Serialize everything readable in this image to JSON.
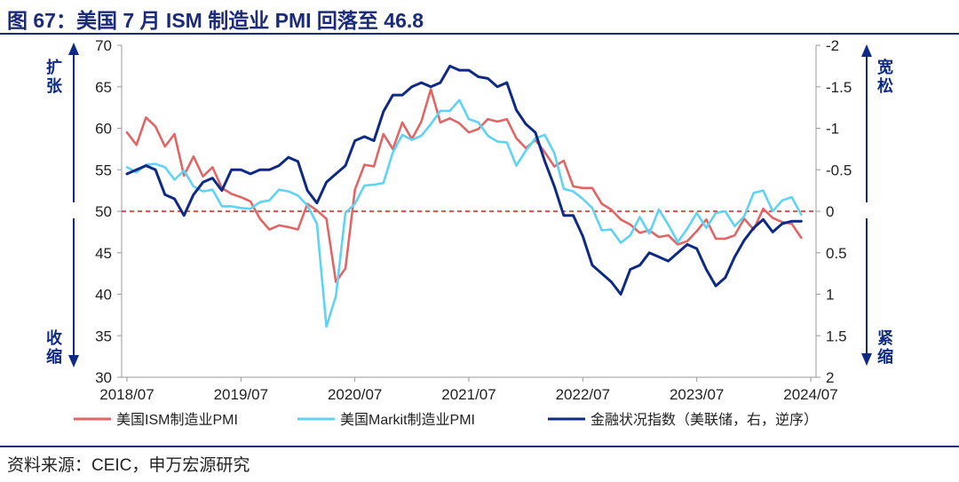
{
  "title": "图 67：美国 7 月 ISM 制造业 PMI 回落至 46.8",
  "source": "资料来源：CEIC，申万宏源研究",
  "chart_data": {
    "type": "line",
    "x_tick_labels": [
      "2018/07",
      "2019/07",
      "2020/07",
      "2021/07",
      "2022/07",
      "2023/07",
      "2024/07"
    ],
    "left_axis": {
      "ylim": [
        30,
        70
      ],
      "ticks": [
        "30",
        "35",
        "40",
        "45",
        "50",
        "55",
        "60",
        "65",
        "70"
      ],
      "upper_label": [
        "扩",
        "张"
      ],
      "lower_label": [
        "收",
        "缩"
      ]
    },
    "right_axis": {
      "ylim": [
        2,
        -2
      ],
      "inverted": true,
      "ticks": [
        "-2",
        "-1.5",
        "-1",
        "-0.5",
        "0",
        "0.5",
        "1",
        "1.5",
        "2"
      ],
      "upper_label": [
        "宽",
        "松"
      ],
      "lower_label": [
        "紧",
        "缩"
      ]
    },
    "reference_line": {
      "value": 50,
      "axis": "left"
    },
    "series": [
      {
        "name": "美国ISM制造业PMI",
        "axis": "left",
        "color": "#e06666",
        "values": [
          59.5,
          58.0,
          61.3,
          60.2,
          57.8,
          59.3,
          54.3,
          56.6,
          54.2,
          55.3,
          52.8,
          52.1,
          51.7,
          51.2,
          49.1,
          47.8,
          48.3,
          48.1,
          47.8,
          50.9,
          50.1,
          49.1,
          41.5,
          43.1,
          52.6,
          55.6,
          55.4,
          59.3,
          57.5,
          60.7,
          58.7,
          60.8,
          64.7,
          60.7,
          61.2,
          60.6,
          59.5,
          59.9,
          61.1,
          60.8,
          61.1,
          58.8,
          57.6,
          58.6,
          57.1,
          55.4,
          56.1,
          53.0,
          52.8,
          52.8,
          50.9,
          50.2,
          49.0,
          48.4,
          47.4,
          47.7,
          46.9,
          47.1,
          46.0,
          46.4,
          47.6,
          49.0,
          46.7,
          46.7,
          47.1,
          49.1,
          47.8,
          50.3,
          49.2,
          48.7,
          48.5,
          46.8
        ]
      },
      {
        "name": "美国Markit制造业PMI",
        "axis": "left",
        "color": "#5fd3f3",
        "values": [
          55.3,
          54.7,
          55.6,
          55.7,
          55.3,
          53.8,
          54.9,
          53.0,
          52.4,
          52.6,
          50.6,
          50.6,
          50.4,
          50.3,
          51.1,
          51.3,
          52.6,
          52.4,
          51.9,
          50.7,
          48.5,
          36.1,
          39.8,
          49.8,
          50.9,
          53.1,
          53.2,
          53.4,
          57.1,
          59.2,
          58.6,
          59.1,
          60.5,
          62.1,
          62.1,
          63.4,
          61.1,
          60.7,
          59.1,
          58.4,
          58.3,
          55.5,
          57.3,
          58.8,
          59.2,
          57.0,
          52.7,
          52.4,
          51.5,
          50.4,
          47.7,
          47.8,
          46.2,
          47.1,
          49.3,
          47.3,
          50.2,
          48.4,
          46.3,
          47.9,
          49.8,
          48.0,
          49.8,
          50.0,
          48.2,
          49.4,
          52.2,
          52.5,
          50.0,
          51.3,
          51.7,
          49.6
        ]
      },
      {
        "name": "金融状况指数（美联储，右，逆序）",
        "axis": "right",
        "color": "#0e2a85",
        "values": [
          -0.45,
          -0.5,
          -0.55,
          -0.5,
          -0.2,
          -0.15,
          0.05,
          -0.2,
          -0.35,
          -0.4,
          -0.25,
          -0.5,
          -0.5,
          -0.45,
          -0.5,
          -0.5,
          -0.55,
          -0.65,
          -0.6,
          -0.25,
          -0.1,
          -0.35,
          -0.45,
          -0.55,
          -0.85,
          -0.9,
          -0.85,
          -1.2,
          -1.4,
          -1.4,
          -1.5,
          -1.55,
          -1.5,
          -1.55,
          -1.75,
          -1.7,
          -1.7,
          -1.62,
          -1.6,
          -1.5,
          -1.55,
          -1.22,
          -1.05,
          -0.95,
          -0.6,
          -0.3,
          0.05,
          0.05,
          0.3,
          0.65,
          0.75,
          0.85,
          1.0,
          0.7,
          0.65,
          0.5,
          0.55,
          0.6,
          0.5,
          0.4,
          0.45,
          0.7,
          0.9,
          0.8,
          0.55,
          0.35,
          0.2,
          0.1,
          0.25,
          0.15,
          0.12,
          0.12
        ]
      }
    ],
    "legend_placement": "bottom"
  }
}
